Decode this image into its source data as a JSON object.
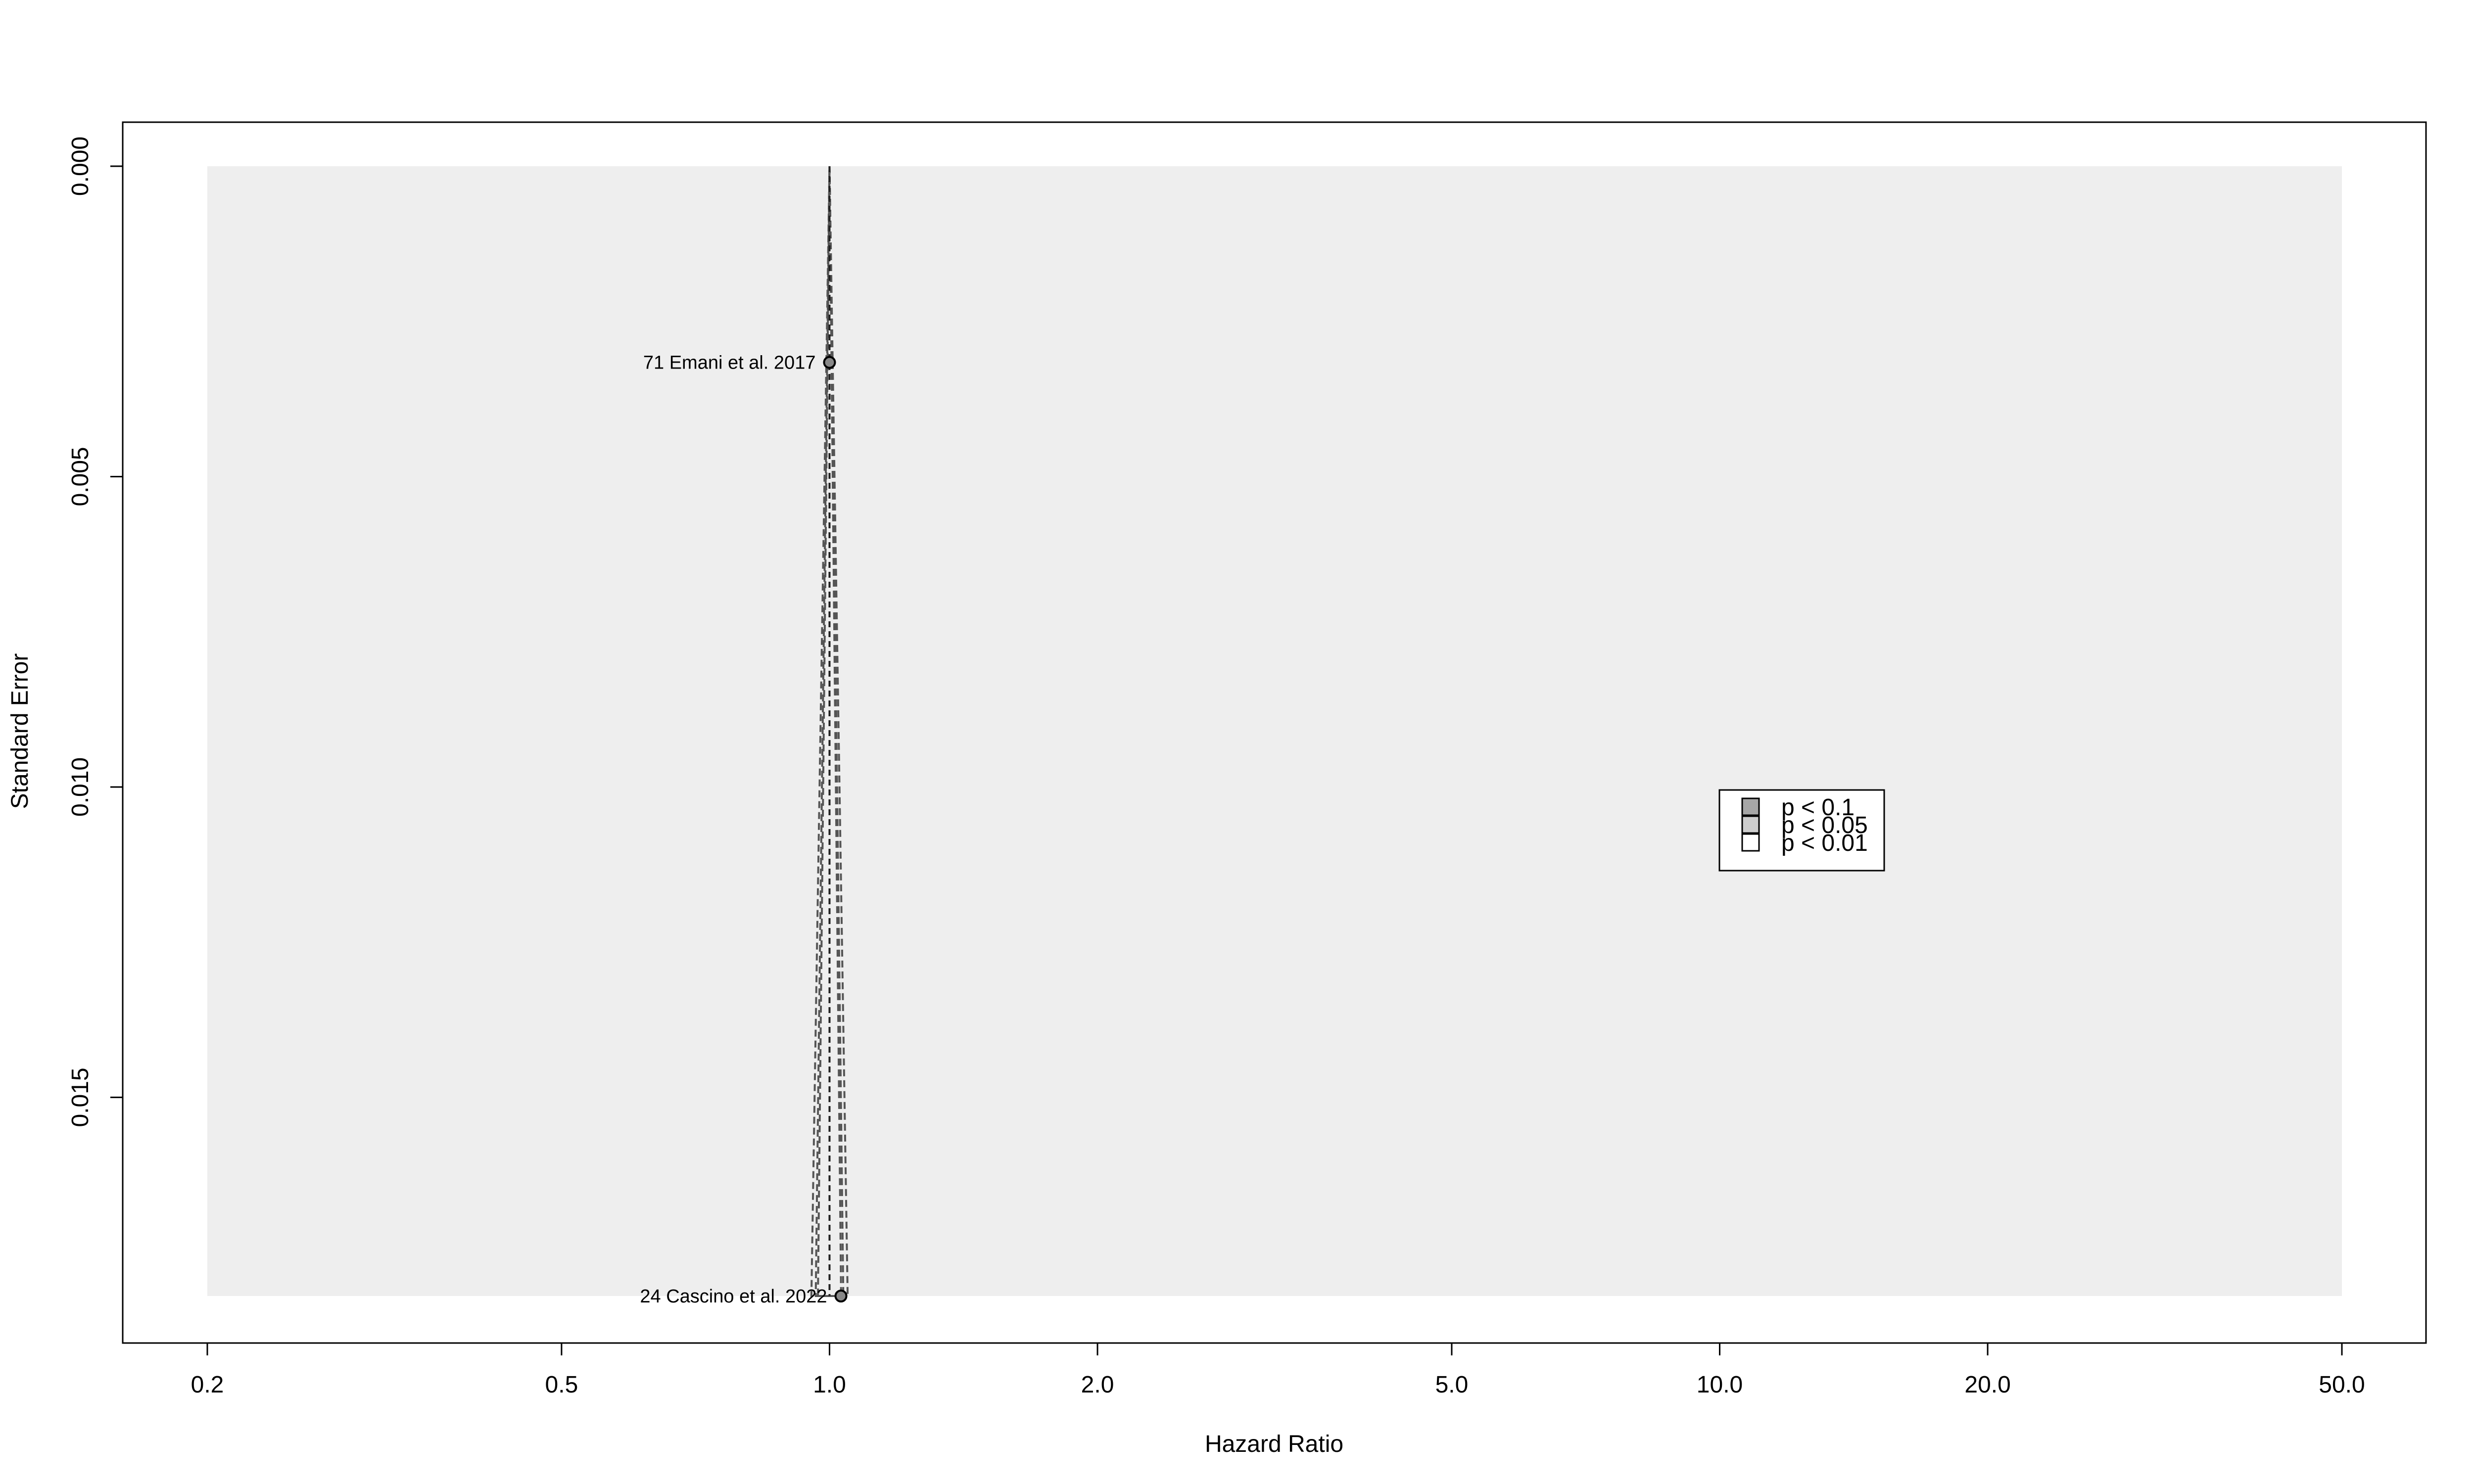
{
  "chart_data": {
    "type": "scatter",
    "subtype": "contour-enhanced funnel plot",
    "title": "",
    "xlabel": "Hazard Ratio",
    "ylabel": "Standard Error",
    "x_scale": "log",
    "x_ticks": [
      0.2,
      0.5,
      1.0,
      2.0,
      5.0,
      10.0,
      20.0,
      50.0
    ],
    "x_tick_labels": [
      "0.2",
      "0.5",
      "1.0",
      "2.0",
      "5.0",
      "10.0",
      "20.0",
      "50.0"
    ],
    "xlim": [
      0.2,
      50.0
    ],
    "y_reversed": true,
    "y_ticks": [
      0.0,
      0.005,
      0.01,
      0.015
    ],
    "y_tick_labels": [
      "0.000",
      "0.005",
      "0.010",
      "0.015"
    ],
    "ylim": [
      0.0,
      0.0182
    ],
    "grid": false,
    "reference_hr": 1.0,
    "background_color": "#eeeeee",
    "legend": {
      "placement": "center-right",
      "entries": [
        {
          "label": "p < 0.1",
          "color": "#a6a6a6"
        },
        {
          "label": "p < 0.05",
          "color": "#cdcdcd"
        },
        {
          "label": "p < 0.01",
          "color": "#ffffff"
        }
      ]
    },
    "points": [
      {
        "label": "71 Emani et al. 2017",
        "hr": 1.0,
        "se": 0.00316
      },
      {
        "label": "24 Cascino et al. 2022",
        "hr": 1.03,
        "se": 0.0182
      }
    ]
  }
}
